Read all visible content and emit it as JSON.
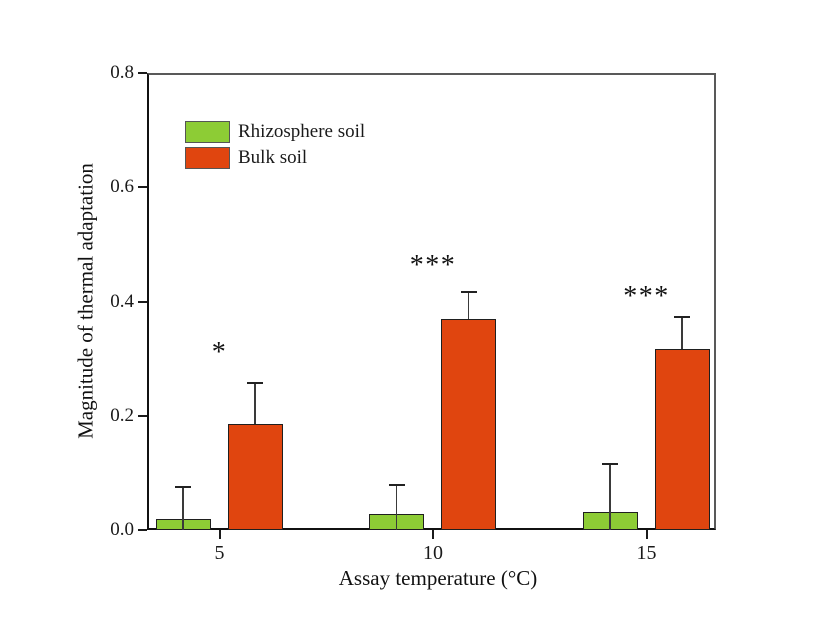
{
  "figure": {
    "background": "#ffffff"
  },
  "chart_data": {
    "type": "bar",
    "title": "",
    "xlabel": "Assay temperature (°C)",
    "ylabel": "Magnitude of thermal adaptation",
    "categories": [
      "5",
      "10",
      "15"
    ],
    "ytick_labels": [
      "0.0",
      "0.2",
      "0.4",
      "0.6",
      "0.8"
    ],
    "ylim": [
      0,
      0.8
    ],
    "grid": false,
    "legend_position": "upper-left-inside",
    "series": [
      {
        "name": "Rhizosphere soil",
        "color": "#8DCC35",
        "values": [
          0.02,
          0.028,
          0.032
        ],
        "error_up": [
          0.056,
          0.051,
          0.084
        ]
      },
      {
        "name": "Bulk soil",
        "color": "#E0450F",
        "values": [
          0.186,
          0.37,
          0.317
        ],
        "error_up": [
          0.072,
          0.047,
          0.056
        ]
      }
    ],
    "significance": [
      {
        "category": "5",
        "label": "*",
        "y": 0.317
      },
      {
        "category": "10",
        "label": "***",
        "y": 0.469
      },
      {
        "category": "15",
        "label": "***",
        "y": 0.415
      }
    ]
  }
}
